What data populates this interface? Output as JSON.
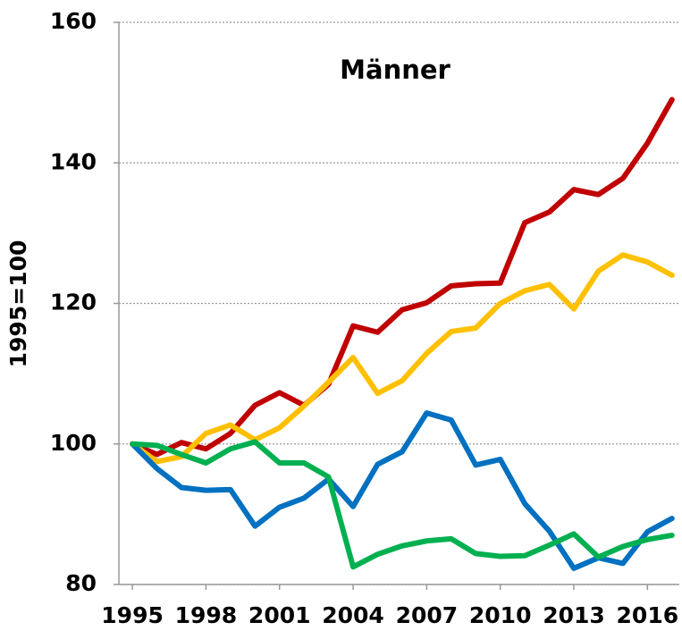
{
  "chart_data": {
    "type": "line",
    "title": "Männer",
    "y_label": "1995=100",
    "x": [
      1995,
      1996,
      1997,
      1998,
      1999,
      2000,
      2001,
      2002,
      2003,
      2004,
      2005,
      2006,
      2007,
      2008,
      2009,
      2010,
      2011,
      2012,
      2013,
      2014,
      2015,
      2016,
      2017
    ],
    "xlim": [
      1994.45,
      2017.3
    ],
    "xticks": [
      1995,
      1998,
      2001,
      2004,
      2007,
      2010,
      2013,
      2016
    ],
    "ylim": [
      80,
      160
    ],
    "yticks": [
      80,
      100,
      120,
      140,
      160
    ],
    "grid": true,
    "series": [
      {
        "color": "#c00000",
        "values": [
          100,
          98.5,
          100.2,
          99.3,
          101.5,
          105.5,
          107.3,
          105.5,
          108.5,
          116.8,
          115.9,
          119.1,
          120.1,
          122.5,
          122.8,
          122.9,
          131.5,
          133,
          136.2,
          135.5,
          137.8,
          142.8,
          149
        ]
      },
      {
        "color": "#ffc000",
        "values": [
          100,
          97.5,
          98.2,
          101.5,
          102.7,
          100.6,
          102.3,
          105.4,
          108.8,
          112.3,
          107.2,
          109,
          112.9,
          116,
          116.5,
          120,
          121.8,
          122.7,
          119.2,
          124.6,
          126.9,
          125.9,
          124
        ]
      },
      {
        "color": "#0070c0",
        "values": [
          100,
          96.5,
          93.8,
          93.4,
          93.5,
          88.3,
          91,
          92.3,
          95,
          91.1,
          97.1,
          98.9,
          104.4,
          103.4,
          97,
          97.8,
          91.5,
          87.6,
          82.3,
          83.8,
          83,
          87.5,
          89.4
        ]
      },
      {
        "color": "#00b050",
        "values": [
          100,
          99.8,
          98.5,
          97.3,
          99.3,
          100.3,
          97.3,
          97.3,
          95.3,
          82.5,
          84.3,
          85.5,
          86.2,
          86.5,
          84.4,
          84,
          84.1,
          85.6,
          87.2,
          83.9,
          85.4,
          86.4,
          87
        ]
      }
    ]
  }
}
